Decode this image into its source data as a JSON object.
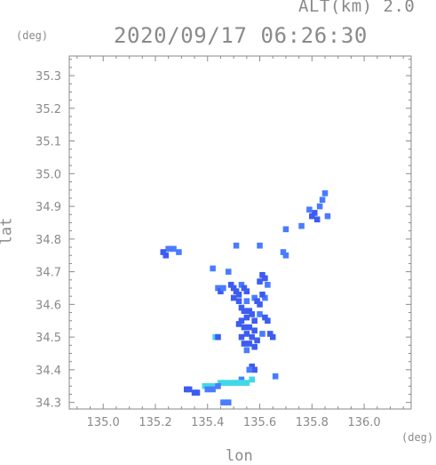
{
  "header": {
    "altitude_label": "ALT(km) 2.0",
    "datetime": "2020/09/17 06:26:30"
  },
  "chart_data": {
    "type": "heatmap",
    "title": "2020/09/17 06:26:30",
    "xlabel": "lon",
    "ylabel": "lat",
    "x_unit": "(deg)",
    "y_unit": "(deg)",
    "xlim": [
      134.87,
      136.18
    ],
    "ylim": [
      34.28,
      35.36
    ],
    "x_ticks": [
      135.0,
      135.2,
      135.4,
      135.6,
      135.8,
      136.0
    ],
    "x_tick_labels": [
      "135.0",
      "135.2",
      "135.4",
      "135.6",
      "135.8",
      "136.0"
    ],
    "y_ticks": [
      34.3,
      34.4,
      34.5,
      34.6,
      34.7,
      34.8,
      34.9,
      35.0,
      35.1,
      35.2,
      35.3
    ],
    "y_tick_labels": [
      "34.3",
      "34.4",
      "34.5",
      "34.6",
      "34.7",
      "34.8",
      "34.9",
      "35.0",
      "35.1",
      "35.2",
      "35.3"
    ],
    "grid": false,
    "colors": {
      "strong": "#3d5cf0",
      "medium": "#4a7cff",
      "light": "#40d8e8",
      "axis": "#8a8a8a"
    },
    "echo_cells": [
      {
        "lon": 135.85,
        "lat": 34.94,
        "level": "medium"
      },
      {
        "lon": 135.84,
        "lat": 34.92,
        "level": "medium"
      },
      {
        "lon": 135.83,
        "lat": 34.9,
        "level": "medium"
      },
      {
        "lon": 135.81,
        "lat": 34.88,
        "level": "strong"
      },
      {
        "lon": 135.8,
        "lat": 34.87,
        "level": "strong"
      },
      {
        "lon": 135.82,
        "lat": 34.86,
        "level": "strong"
      },
      {
        "lon": 135.79,
        "lat": 34.89,
        "level": "medium"
      },
      {
        "lon": 135.86,
        "lat": 34.87,
        "level": "medium"
      },
      {
        "lon": 135.76,
        "lat": 34.84,
        "level": "medium"
      },
      {
        "lon": 135.7,
        "lat": 34.83,
        "level": "medium"
      },
      {
        "lon": 135.25,
        "lat": 34.77,
        "level": "medium"
      },
      {
        "lon": 135.27,
        "lat": 34.77,
        "level": "medium"
      },
      {
        "lon": 135.29,
        "lat": 34.76,
        "level": "medium"
      },
      {
        "lon": 135.23,
        "lat": 34.76,
        "level": "strong"
      },
      {
        "lon": 135.24,
        "lat": 34.75,
        "level": "strong"
      },
      {
        "lon": 135.69,
        "lat": 34.76,
        "level": "medium"
      },
      {
        "lon": 135.7,
        "lat": 34.75,
        "level": "medium"
      },
      {
        "lon": 135.6,
        "lat": 34.78,
        "level": "medium"
      },
      {
        "lon": 135.51,
        "lat": 34.78,
        "level": "medium"
      },
      {
        "lon": 135.48,
        "lat": 34.7,
        "level": "medium"
      },
      {
        "lon": 135.42,
        "lat": 34.71,
        "level": "medium"
      },
      {
        "lon": 135.61,
        "lat": 34.69,
        "level": "strong"
      },
      {
        "lon": 135.62,
        "lat": 34.68,
        "level": "strong"
      },
      {
        "lon": 135.6,
        "lat": 34.67,
        "level": "strong"
      },
      {
        "lon": 135.63,
        "lat": 34.66,
        "level": "medium"
      },
      {
        "lon": 135.44,
        "lat": 34.65,
        "level": "medium"
      },
      {
        "lon": 135.45,
        "lat": 34.64,
        "level": "strong"
      },
      {
        "lon": 135.46,
        "lat": 34.65,
        "level": "medium"
      },
      {
        "lon": 135.49,
        "lat": 34.66,
        "level": "strong"
      },
      {
        "lon": 135.5,
        "lat": 34.65,
        "level": "strong"
      },
      {
        "lon": 135.51,
        "lat": 34.64,
        "level": "strong"
      },
      {
        "lon": 135.52,
        "lat": 34.63,
        "level": "strong"
      },
      {
        "lon": 135.53,
        "lat": 34.66,
        "level": "medium"
      },
      {
        "lon": 135.54,
        "lat": 34.65,
        "level": "strong"
      },
      {
        "lon": 135.55,
        "lat": 34.64,
        "level": "strong"
      },
      {
        "lon": 135.5,
        "lat": 34.62,
        "level": "strong"
      },
      {
        "lon": 135.52,
        "lat": 34.61,
        "level": "strong"
      },
      {
        "lon": 135.55,
        "lat": 34.61,
        "level": "medium"
      },
      {
        "lon": 135.58,
        "lat": 34.62,
        "level": "medium"
      },
      {
        "lon": 135.59,
        "lat": 34.61,
        "level": "strong"
      },
      {
        "lon": 135.6,
        "lat": 34.6,
        "level": "strong"
      },
      {
        "lon": 135.62,
        "lat": 34.62,
        "level": "medium"
      },
      {
        "lon": 135.61,
        "lat": 34.63,
        "level": "strong"
      },
      {
        "lon": 135.53,
        "lat": 34.59,
        "level": "strong"
      },
      {
        "lon": 135.54,
        "lat": 34.58,
        "level": "strong"
      },
      {
        "lon": 135.56,
        "lat": 34.58,
        "level": "strong"
      },
      {
        "lon": 135.57,
        "lat": 34.57,
        "level": "strong"
      },
      {
        "lon": 135.55,
        "lat": 34.56,
        "level": "strong"
      },
      {
        "lon": 135.53,
        "lat": 34.55,
        "level": "strong"
      },
      {
        "lon": 135.58,
        "lat": 34.55,
        "level": "strong"
      },
      {
        "lon": 135.6,
        "lat": 34.57,
        "level": "medium"
      },
      {
        "lon": 135.62,
        "lat": 34.56,
        "level": "strong"
      },
      {
        "lon": 135.63,
        "lat": 34.55,
        "level": "strong"
      },
      {
        "lon": 135.52,
        "lat": 34.54,
        "level": "strong"
      },
      {
        "lon": 135.54,
        "lat": 34.53,
        "level": "strong"
      },
      {
        "lon": 135.56,
        "lat": 34.53,
        "level": "strong"
      },
      {
        "lon": 135.58,
        "lat": 34.52,
        "level": "strong"
      },
      {
        "lon": 135.55,
        "lat": 34.51,
        "level": "strong"
      },
      {
        "lon": 135.53,
        "lat": 34.5,
        "level": "strong"
      },
      {
        "lon": 135.57,
        "lat": 34.5,
        "level": "strong"
      },
      {
        "lon": 135.59,
        "lat": 34.49,
        "level": "strong"
      },
      {
        "lon": 135.61,
        "lat": 34.51,
        "level": "medium"
      },
      {
        "lon": 135.64,
        "lat": 34.51,
        "level": "strong"
      },
      {
        "lon": 135.65,
        "lat": 34.5,
        "level": "strong"
      },
      {
        "lon": 135.54,
        "lat": 34.48,
        "level": "strong"
      },
      {
        "lon": 135.56,
        "lat": 34.48,
        "level": "strong"
      },
      {
        "lon": 135.58,
        "lat": 34.47,
        "level": "strong"
      },
      {
        "lon": 135.55,
        "lat": 34.46,
        "level": "medium"
      },
      {
        "lon": 135.43,
        "lat": 34.5,
        "level": "light"
      },
      {
        "lon": 135.44,
        "lat": 34.5,
        "level": "strong"
      },
      {
        "lon": 135.57,
        "lat": 34.41,
        "level": "strong"
      },
      {
        "lon": 135.58,
        "lat": 34.4,
        "level": "strong"
      },
      {
        "lon": 135.56,
        "lat": 34.4,
        "level": "medium"
      },
      {
        "lon": 135.66,
        "lat": 34.38,
        "level": "medium"
      },
      {
        "lon": 135.53,
        "lat": 34.37,
        "level": "medium"
      },
      {
        "lon": 135.32,
        "lat": 34.34,
        "level": "strong"
      },
      {
        "lon": 135.33,
        "lat": 34.34,
        "level": "strong"
      },
      {
        "lon": 135.35,
        "lat": 34.33,
        "level": "strong"
      },
      {
        "lon": 135.36,
        "lat": 34.33,
        "level": "strong"
      },
      {
        "lon": 135.39,
        "lat": 34.35,
        "level": "light"
      },
      {
        "lon": 135.41,
        "lat": 34.35,
        "level": "light"
      },
      {
        "lon": 135.43,
        "lat": 34.35,
        "level": "light"
      },
      {
        "lon": 135.45,
        "lat": 34.36,
        "level": "light"
      },
      {
        "lon": 135.47,
        "lat": 34.36,
        "level": "light"
      },
      {
        "lon": 135.49,
        "lat": 34.36,
        "level": "light"
      },
      {
        "lon": 135.51,
        "lat": 34.36,
        "level": "light"
      },
      {
        "lon": 135.53,
        "lat": 34.36,
        "level": "light"
      },
      {
        "lon": 135.55,
        "lat": 34.36,
        "level": "light"
      },
      {
        "lon": 135.57,
        "lat": 34.37,
        "level": "light"
      },
      {
        "lon": 135.4,
        "lat": 34.34,
        "level": "medium"
      },
      {
        "lon": 135.42,
        "lat": 34.34,
        "level": "medium"
      },
      {
        "lon": 135.44,
        "lat": 34.35,
        "level": "medium"
      },
      {
        "lon": 135.46,
        "lat": 34.3,
        "level": "medium"
      },
      {
        "lon": 135.48,
        "lat": 34.3,
        "level": "medium"
      }
    ]
  }
}
